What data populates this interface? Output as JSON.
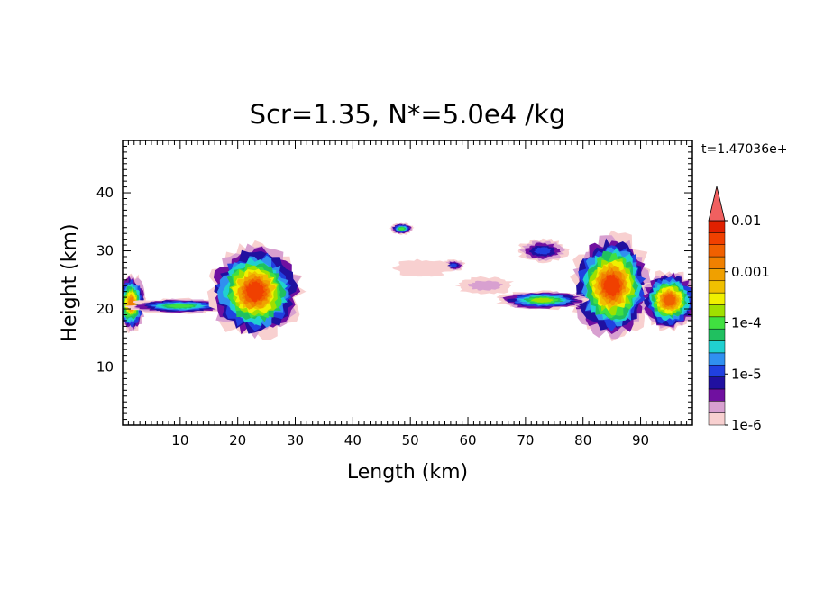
{
  "chart_data": {
    "type": "heatmap",
    "title": "Scr=1.35, N*=5.0e4 /kg",
    "xlabel": "Length  (km)",
    "ylabel": "Height  (km)",
    "time_label": "t=1.47036e+",
    "xlim": [
      0,
      99
    ],
    "ylim": [
      0,
      49
    ],
    "x_ticks": [
      "10",
      "20",
      "30",
      "40",
      "50",
      "60",
      "70",
      "80",
      "90"
    ],
    "y_ticks": [
      "10",
      "20",
      "30",
      "40"
    ],
    "colorbar": {
      "labels": [
        "0.01",
        "0.001",
        "1e-4",
        "1e-5",
        "1e-6"
      ],
      "label_levels": [
        0.01,
        0.001,
        0.0001,
        1e-05,
        1e-06
      ],
      "colors": [
        "#f8d0d0",
        "#d8a0d0",
        "#7010a0",
        "#2010a0",
        "#2040e0",
        "#3090f0",
        "#20d0d0",
        "#20c060",
        "#40e040",
        "#a0e000",
        "#f0f000",
        "#f0c000",
        "#f0a000",
        "#f08000",
        "#f06000",
        "#f04000",
        "#e02000",
        "#f06060"
      ],
      "extend": "max"
    },
    "cells": [
      {
        "name": "left-edge-cloud",
        "x": 1.5,
        "y": 21.0,
        "rx": 2.5,
        "ry": 5.0,
        "peak": 0.002
      },
      {
        "name": "low-band-west",
        "x": 10.0,
        "y": 20.5,
        "rx": 9.0,
        "ry": 1.3,
        "peak": 0.0001
      },
      {
        "name": "cell-20km",
        "x": 23.0,
        "y": 23.0,
        "rx": 8.0,
        "ry": 8.0,
        "peak": 0.006
      },
      {
        "name": "cell-84km",
        "x": 85.0,
        "y": 24.0,
        "rx": 7.0,
        "ry": 9.0,
        "peak": 0.006
      },
      {
        "name": "cell-96km",
        "x": 95.0,
        "y": 21.5,
        "rx": 5.0,
        "ry": 5.0,
        "peak": 0.004
      },
      {
        "name": "low-band-east",
        "x": 73.0,
        "y": 21.5,
        "rx": 8.0,
        "ry": 1.6,
        "peak": 0.0002
      },
      {
        "name": "patch-48-34",
        "x": 48.5,
        "y": 33.8,
        "rx": 2.0,
        "ry": 1.0,
        "peak": 0.0001
      },
      {
        "name": "patch-57-27",
        "x": 57.5,
        "y": 27.5,
        "rx": 2.0,
        "ry": 1.0,
        "peak": 1e-05
      },
      {
        "name": "patch-73-30",
        "x": 73.0,
        "y": 30.0,
        "rx": 4.5,
        "ry": 2.0,
        "peak": 1e-05
      },
      {
        "name": "haze-52-28",
        "x": 52.0,
        "y": 27.0,
        "rx": 5.0,
        "ry": 1.5,
        "peak": 1e-06
      },
      {
        "name": "haze-63-24",
        "x": 63.0,
        "y": 24.0,
        "rx": 5.0,
        "ry": 1.5,
        "peak": 2e-06
      }
    ]
  }
}
